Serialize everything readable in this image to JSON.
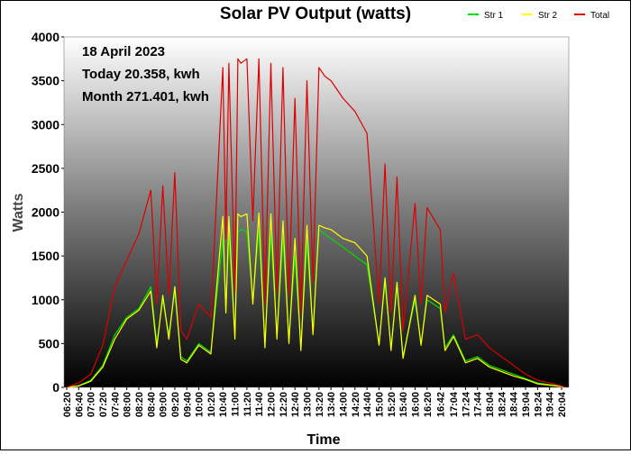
{
  "chart_data": {
    "type": "line",
    "title": "Solar PV Output (watts)",
    "xlabel": "Time",
    "ylabel": "Watts",
    "ylim": [
      0,
      4000
    ],
    "y_ticks": [
      0,
      500,
      1000,
      1500,
      2000,
      2500,
      3000,
      3500,
      4000
    ],
    "x_ticks": [
      "06:20",
      "06:40",
      "07:00",
      "07:20",
      "07:40",
      "08:00",
      "08:20",
      "08:40",
      "09:00",
      "09:20",
      "09:40",
      "10:00",
      "10:20",
      "10:40",
      "11:00",
      "11:20",
      "11:40",
      "12:00",
      "12:20",
      "12:40",
      "13:00",
      "13:20",
      "13:40",
      "14:00",
      "14:20",
      "14:40",
      "15:00",
      "15:20",
      "15:40",
      "16:00",
      "16:20",
      "16:42",
      "17:04",
      "17:24",
      "17:44",
      "18:04",
      "18:24",
      "18:44",
      "19:04",
      "19:24",
      "19:44",
      "20:04"
    ],
    "annotations": [
      "18 April 2023",
      "Today 20.358, kwh",
      "Month 271.401, kwh"
    ],
    "legend_position": "top-right",
    "background": "vertical gradient white to black",
    "series": [
      {
        "name": "Str 1",
        "color": "#00dd00",
        "x": [
          "06:20",
          "06:40",
          "07:00",
          "07:20",
          "07:40",
          "08:00",
          "08:20",
          "08:40",
          "08:50",
          "09:00",
          "09:10",
          "09:20",
          "09:30",
          "09:40",
          "10:00",
          "10:20",
          "10:40",
          "10:45",
          "10:50",
          "11:00",
          "11:05",
          "11:10",
          "11:20",
          "11:30",
          "11:40",
          "11:50",
          "12:00",
          "12:10",
          "12:20",
          "12:30",
          "12:40",
          "12:50",
          "13:00",
          "13:10",
          "13:20",
          "13:30",
          "13:40",
          "14:00",
          "14:20",
          "14:40",
          "15:00",
          "15:10",
          "15:20",
          "15:30",
          "15:40",
          "16:00",
          "16:10",
          "16:20",
          "16:42",
          "16:50",
          "17:04",
          "17:24",
          "17:44",
          "18:04",
          "18:24",
          "18:44",
          "19:04",
          "19:24",
          "19:44",
          "20:04",
          "20:10"
        ],
        "values": [
          0,
          20,
          80,
          250,
          600,
          800,
          900,
          1150,
          500,
          1000,
          600,
          1100,
          350,
          300,
          500,
          400,
          1700,
          900,
          1750,
          600,
          1780,
          1800,
          1780,
          1000,
          1800,
          500,
          1750,
          600,
          1700,
          550,
          1500,
          450,
          1650,
          650,
          1800,
          1750,
          1700,
          1600,
          1500,
          1400,
          500,
          1200,
          450,
          1150,
          350,
          1000,
          500,
          1000,
          900,
          450,
          600,
          300,
          350,
          250,
          200,
          150,
          100,
          50,
          30,
          10,
          0
        ]
      },
      {
        "name": "Str 2",
        "color": "#ffff00",
        "x": [
          "06:20",
          "06:40",
          "07:00",
          "07:20",
          "07:40",
          "08:00",
          "08:20",
          "08:40",
          "08:50",
          "09:00",
          "09:10",
          "09:20",
          "09:30",
          "09:40",
          "10:00",
          "10:20",
          "10:40",
          "10:45",
          "10:50",
          "11:00",
          "11:05",
          "11:10",
          "11:20",
          "11:30",
          "11:40",
          "11:50",
          "12:00",
          "12:10",
          "12:20",
          "12:30",
          "12:40",
          "12:50",
          "13:00",
          "13:10",
          "13:20",
          "13:30",
          "13:40",
          "14:00",
          "14:20",
          "14:40",
          "15:00",
          "15:10",
          "15:20",
          "15:30",
          "15:40",
          "16:00",
          "16:10",
          "16:20",
          "16:42",
          "16:50",
          "17:04",
          "17:24",
          "17:44",
          "18:04",
          "18:24",
          "18:44",
          "19:04",
          "19:24",
          "19:44",
          "20:04",
          "20:10"
        ],
        "values": [
          0,
          15,
          70,
          230,
          550,
          780,
          880,
          1100,
          450,
          1050,
          550,
          1150,
          320,
          280,
          480,
          380,
          1950,
          850,
          1950,
          550,
          1980,
          1950,
          1980,
          950,
          1990,
          450,
          1980,
          550,
          1900,
          500,
          1700,
          420,
          1850,
          600,
          1850,
          1820,
          1800,
          1700,
          1650,
          1500,
          480,
          1250,
          420,
          1200,
          330,
          1050,
          480,
          1050,
          950,
          420,
          580,
          280,
          330,
          230,
          180,
          130,
          90,
          40,
          25,
          8,
          0
        ]
      },
      {
        "name": "Total",
        "color": "#dd0000",
        "x": [
          "06:20",
          "06:40",
          "07:00",
          "07:20",
          "07:40",
          "08:00",
          "08:20",
          "08:40",
          "08:50",
          "09:00",
          "09:10",
          "09:20",
          "09:30",
          "09:40",
          "10:00",
          "10:20",
          "10:40",
          "10:45",
          "10:50",
          "11:00",
          "11:05",
          "11:10",
          "11:20",
          "11:30",
          "11:40",
          "11:50",
          "12:00",
          "12:10",
          "12:20",
          "12:30",
          "12:40",
          "12:50",
          "13:00",
          "13:10",
          "13:20",
          "13:30",
          "13:40",
          "14:00",
          "14:20",
          "14:40",
          "15:00",
          "15:10",
          "15:20",
          "15:30",
          "15:40",
          "16:00",
          "16:10",
          "16:20",
          "16:42",
          "16:50",
          "17:04",
          "17:24",
          "17:44",
          "18:04",
          "18:24",
          "18:44",
          "19:04",
          "19:24",
          "19:44",
          "20:04",
          "20:10"
        ],
        "values": [
          0,
          50,
          150,
          480,
          1150,
          1450,
          1750,
          2250,
          950,
          2300,
          1050,
          2450,
          650,
          550,
          950,
          800,
          3650,
          1700,
          3700,
          1100,
          3750,
          3700,
          3750,
          1900,
          3750,
          950,
          3700,
          1100,
          3650,
          1050,
          3300,
          850,
          3500,
          1200,
          3650,
          3550,
          3500,
          3300,
          3150,
          2900,
          950,
          2550,
          850,
          2400,
          650,
          2100,
          950,
          2050,
          1800,
          850,
          1300,
          550,
          600,
          450,
          350,
          250,
          150,
          80,
          50,
          15,
          0
        ]
      }
    ]
  }
}
